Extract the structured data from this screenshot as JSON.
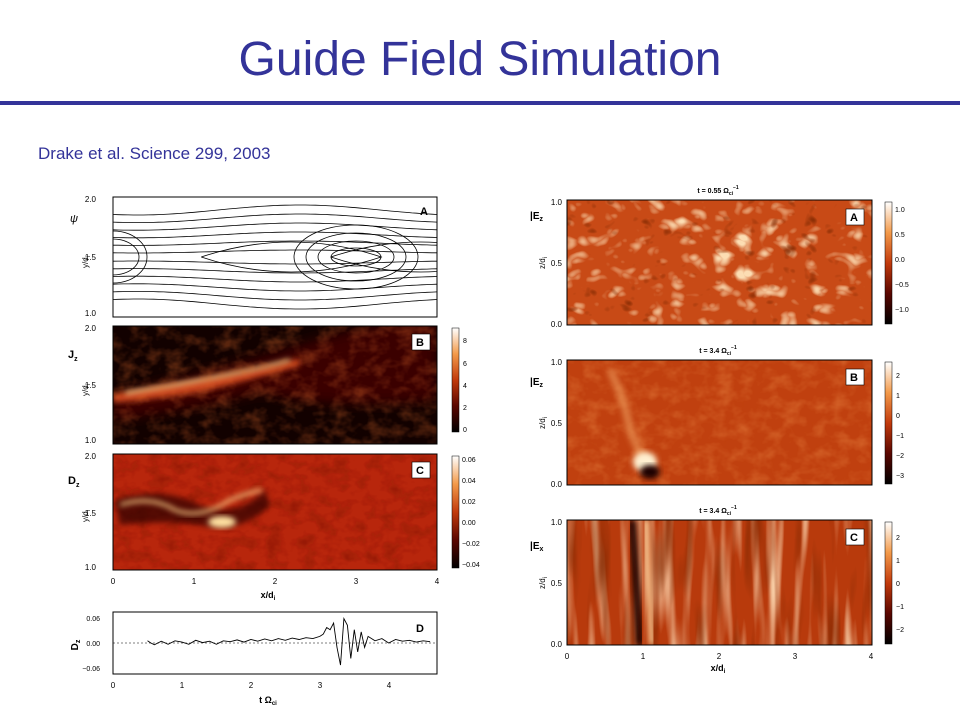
{
  "slide": {
    "title": "Guide Field Simulation",
    "citation": "Drake et al. Science 299, 2003",
    "title_color": "#333399"
  },
  "left_figure": {
    "panels": [
      {
        "letter": "A",
        "quantity": "ψ",
        "ylabel": "y/d",
        "ylabel_sub": "i",
        "yticks": [
          "1.0",
          "1.5",
          "2.0"
        ],
        "kind": "contour"
      },
      {
        "letter": "B",
        "quantity": "J",
        "quantity_sub": "z",
        "ylabel": "y/d",
        "ylabel_sub": "i",
        "yticks": [
          "1.0",
          "1.5",
          "2.0"
        ],
        "colorbar_ticks": [
          "8",
          "6",
          "4",
          "2",
          "0"
        ],
        "kind": "colormap"
      },
      {
        "letter": "C",
        "quantity": "D",
        "quantity_sub": "z",
        "ylabel": "y/d",
        "ylabel_sub": "i",
        "yticks": [
          "1.0",
          "1.5",
          "2.0"
        ],
        "colorbar_ticks": [
          "0.06",
          "0.04",
          "0.02",
          "0.00",
          "−0.02",
          "−0.04"
        ],
        "kind": "colormap"
      }
    ],
    "shared_xticks": [
      "0",
      "1",
      "2",
      "3",
      "4"
    ],
    "shared_xlabel": "x/d",
    "shared_xlabel_sub": "i"
  },
  "chart_data": {
    "type": "line",
    "panel_letter": "D",
    "ylabel": "D",
    "ylabel_sub": "z",
    "xlabel": "t Ω",
    "xlabel_sub": "ci",
    "xticks": [
      "0",
      "1",
      "2",
      "3",
      "4"
    ],
    "yticks": [
      "0.06",
      "0.00",
      "−0.06"
    ],
    "xlim": [
      0,
      4.7
    ],
    "ylim": [
      -0.07,
      0.07
    ],
    "series": [
      {
        "x": [
          0.5,
          0.55,
          0.6,
          0.7,
          0.8,
          0.9,
          1.0,
          1.1,
          1.2,
          1.3,
          1.4,
          1.5,
          1.6,
          1.7,
          1.8,
          1.9,
          2.0,
          2.1,
          2.2,
          2.3,
          2.4,
          2.5,
          2.6,
          2.7,
          2.8,
          2.9,
          3.0,
          3.05,
          3.1,
          3.15,
          3.2,
          3.25,
          3.3,
          3.35,
          3.4,
          3.45,
          3.5,
          3.55,
          3.6,
          3.65,
          3.7,
          3.8,
          3.9,
          4.0,
          4.1,
          4.2,
          4.3,
          4.4,
          4.5,
          4.6
        ],
        "y": [
          0.005,
          0.0,
          -0.004,
          0.004,
          -0.003,
          0.005,
          0.002,
          -0.003,
          0.006,
          0.001,
          0.004,
          -0.003,
          0.005,
          0.003,
          0.007,
          0.002,
          0.008,
          0.004,
          0.009,
          0.005,
          0.01,
          0.006,
          0.011,
          0.008,
          0.012,
          0.01,
          0.015,
          0.02,
          0.035,
          0.03,
          0.045,
          -0.01,
          -0.05,
          0.055,
          0.04,
          -0.035,
          0.03,
          -0.02,
          0.025,
          -0.01,
          0.015,
          0.005,
          0.01,
          0.0,
          0.008,
          0.004,
          0.006,
          0.002,
          0.005,
          0.003
        ]
      }
    ]
  },
  "right_figure": {
    "panels": [
      {
        "letter": "A",
        "quantity": "E",
        "quantity_sub": "z",
        "time_label": "t = 0.55 Ω",
        "time_sub": "ci",
        "time_sup": "−1",
        "ylabel": "z/d",
        "ylabel_sub": "i",
        "yticks": [
          "0.0",
          "0.5",
          "1.0"
        ],
        "colorbar_ticks": [
          "1.0",
          "0.5",
          "0.0",
          "−0.5",
          "−1.0"
        ]
      },
      {
        "letter": "B",
        "quantity": "E",
        "quantity_sub": "z",
        "time_label": "t = 3.4 Ω",
        "time_sub": "ci",
        "time_sup": "−1",
        "ylabel": "z/d",
        "ylabel_sub": "i",
        "yticks": [
          "0.0",
          "0.5",
          "1.0"
        ],
        "colorbar_ticks": [
          "2",
          "1",
          "0",
          "−1",
          "−2",
          "−3"
        ]
      },
      {
        "letter": "C",
        "quantity": "E",
        "quantity_sub": "x",
        "time_label": "t = 3.4 Ω",
        "time_sub": "ci",
        "time_sup": "−1",
        "ylabel": "z/d",
        "ylabel_sub": "i",
        "yticks": [
          "0.0",
          "0.5",
          "1.0"
        ],
        "colorbar_ticks": [
          "2",
          "1",
          "0",
          "−1",
          "−2"
        ]
      }
    ],
    "shared_xticks": [
      "0",
      "1",
      "2",
      "3",
      "4"
    ],
    "shared_xlabel": "x/d",
    "shared_xlabel_sub": "i"
  }
}
